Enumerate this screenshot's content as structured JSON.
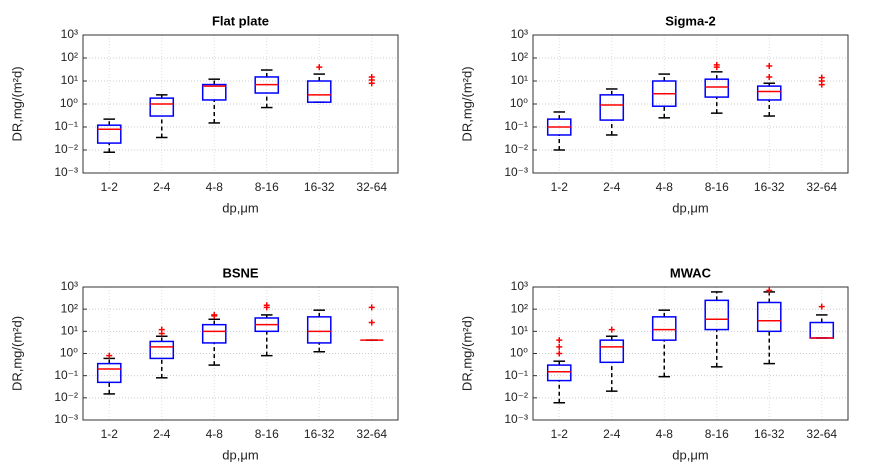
{
  "chart_data": [
    {
      "type": "box",
      "title": "Flat plate",
      "xlabel": "dp,μm",
      "ylabel": "DR,mg/(m²d)",
      "log": true,
      "grid": true,
      "box_color": "#0000ff",
      "median_color": "#ff0000",
      "whisker_color": "#000000",
      "outlier_color": "#ff0000",
      "ylim": [
        0.001,
        1000
      ],
      "yticks": [
        {
          "value": 0.001,
          "label": "10⁻³"
        },
        {
          "value": 0.01,
          "label": "10⁻²"
        },
        {
          "value": 0.1,
          "label": "10⁻¹"
        },
        {
          "value": 1,
          "label": "10⁰"
        },
        {
          "value": 10,
          "label": "10¹"
        },
        {
          "value": 100,
          "label": "10²"
        },
        {
          "value": 1000,
          "label": "10³"
        }
      ],
      "categories": [
        "1-2",
        "2-4",
        "4-8",
        "8-16",
        "16-32",
        "32-64"
      ],
      "boxes": [
        {
          "low": 0.008,
          "q1": 0.02,
          "median": 0.08,
          "q3": 0.12,
          "high": 0.22,
          "outliers": []
        },
        {
          "low": 0.035,
          "q1": 0.3,
          "median": 1.0,
          "q3": 1.8,
          "high": 2.5,
          "outliers": []
        },
        {
          "low": 0.15,
          "q1": 1.5,
          "median": 6,
          "q3": 7,
          "high": 12,
          "outliers": []
        },
        {
          "low": 0.7,
          "q1": 3,
          "median": 7,
          "q3": 15,
          "high": 30,
          "outliers": []
        },
        {
          "low": 1.2,
          "q1": 1.2,
          "median": 2.5,
          "q3": 10,
          "high": 20,
          "outliers": [
            40
          ]
        },
        {
          "low": null,
          "q1": null,
          "median": null,
          "q3": null,
          "high": null,
          "outliers": [
            15,
            11,
            8
          ]
        }
      ]
    },
    {
      "type": "box",
      "title": "Sigma-2",
      "xlabel": "dp,μm",
      "ylabel": "DR,mg/(m²d)",
      "log": true,
      "grid": true,
      "box_color": "#0000ff",
      "median_color": "#ff0000",
      "whisker_color": "#000000",
      "outlier_color": "#ff0000",
      "ylim": [
        0.001,
        1000
      ],
      "yticks": [
        {
          "value": 0.001,
          "label": "10⁻³"
        },
        {
          "value": 0.01,
          "label": "10⁻²"
        },
        {
          "value": 0.1,
          "label": "10⁻¹"
        },
        {
          "value": 1,
          "label": "10⁰"
        },
        {
          "value": 10,
          "label": "10¹"
        },
        {
          "value": 100,
          "label": "10²"
        },
        {
          "value": 1000,
          "label": "10³"
        }
      ],
      "categories": [
        "1-2",
        "2-4",
        "4-8",
        "8-16",
        "16-32",
        "32-64"
      ],
      "boxes": [
        {
          "low": 0.01,
          "q1": 0.045,
          "median": 0.1,
          "q3": 0.22,
          "high": 0.45,
          "outliers": []
        },
        {
          "low": 0.045,
          "q1": 0.2,
          "median": 0.9,
          "q3": 2.5,
          "high": 4.5,
          "outliers": []
        },
        {
          "low": 0.25,
          "q1": 0.8,
          "median": 2.8,
          "q3": 10,
          "high": 20,
          "outliers": []
        },
        {
          "low": 0.4,
          "q1": 2,
          "median": 5.5,
          "q3": 12,
          "high": 25,
          "outliers": [
            40,
            50
          ]
        },
        {
          "low": 0.3,
          "q1": 1.5,
          "median": 3.5,
          "q3": 6,
          "high": 8,
          "outliers": [
            15,
            45
          ]
        },
        {
          "low": null,
          "q1": null,
          "median": null,
          "q3": null,
          "high": null,
          "outliers": [
            14,
            10,
            7
          ]
        }
      ]
    },
    {
      "type": "box",
      "title": "BSNE",
      "xlabel": "dp,μm",
      "ylabel": "DR,mg/(m²d)",
      "log": true,
      "grid": true,
      "box_color": "#0000ff",
      "median_color": "#ff0000",
      "whisker_color": "#000000",
      "outlier_color": "#ff0000",
      "ylim": [
        0.001,
        1000
      ],
      "yticks": [
        {
          "value": 0.001,
          "label": "10⁻³"
        },
        {
          "value": 0.01,
          "label": "10⁻²"
        },
        {
          "value": 0.1,
          "label": "10⁻¹"
        },
        {
          "value": 1,
          "label": "10⁰"
        },
        {
          "value": 10,
          "label": "10¹"
        },
        {
          "value": 100,
          "label": "10²"
        },
        {
          "value": 1000,
          "label": "10³"
        }
      ],
      "categories": [
        "1-2",
        "2-4",
        "4-8",
        "8-16",
        "16-32",
        "32-64"
      ],
      "boxes": [
        {
          "low": 0.015,
          "q1": 0.05,
          "median": 0.2,
          "q3": 0.35,
          "high": 0.6,
          "outliers": [
            0.8
          ]
        },
        {
          "low": 0.08,
          "q1": 0.6,
          "median": 2,
          "q3": 3.5,
          "high": 6,
          "outliers": [
            8,
            12
          ]
        },
        {
          "low": 0.3,
          "q1": 3,
          "median": 10,
          "q3": 20,
          "high": 35,
          "outliers": [
            50,
            55
          ]
        },
        {
          "low": 0.8,
          "q1": 10,
          "median": 20,
          "q3": 40,
          "high": 55,
          "outliers": [
            120,
            150
          ]
        },
        {
          "low": 1.2,
          "q1": 3,
          "median": 10,
          "q3": 45,
          "high": 90,
          "outliers": []
        },
        {
          "low": 4,
          "q1": 4,
          "median": 4,
          "q3": 4,
          "high": 4,
          "outliers": [
            25,
            120
          ]
        }
      ]
    },
    {
      "type": "box",
      "title": "MWAC",
      "xlabel": "dp,μm",
      "ylabel": "DR,mg/(m²d)",
      "log": true,
      "grid": true,
      "box_color": "#0000ff",
      "median_color": "#ff0000",
      "whisker_color": "#000000",
      "outlier_color": "#ff0000",
      "ylim": [
        0.001,
        1000
      ],
      "yticks": [
        {
          "value": 0.001,
          "label": "10⁻³"
        },
        {
          "value": 0.01,
          "label": "10⁻²"
        },
        {
          "value": 0.1,
          "label": "10⁻¹"
        },
        {
          "value": 1,
          "label": "10⁰"
        },
        {
          "value": 10,
          "label": "10¹"
        },
        {
          "value": 100,
          "label": "10²"
        },
        {
          "value": 1000,
          "label": "10³"
        }
      ],
      "categories": [
        "1-2",
        "2-4",
        "4-8",
        "8-16",
        "16-32",
        "32-64"
      ],
      "boxes": [
        {
          "low": 0.006,
          "q1": 0.06,
          "median": 0.15,
          "q3": 0.3,
          "high": 0.45,
          "outliers": [
            1,
            2,
            4
          ]
        },
        {
          "low": 0.02,
          "q1": 0.4,
          "median": 2,
          "q3": 4,
          "high": 6,
          "outliers": [
            12
          ]
        },
        {
          "low": 0.09,
          "q1": 4,
          "median": 12,
          "q3": 45,
          "high": 90,
          "outliers": []
        },
        {
          "low": 0.25,
          "q1": 12,
          "median": 35,
          "q3": 250,
          "high": 600,
          "outliers": []
        },
        {
          "low": 0.35,
          "q1": 10,
          "median": 30,
          "q3": 200,
          "high": 600,
          "outliers": [
            700
          ]
        },
        {
          "low": 5,
          "q1": 5,
          "median": 5,
          "q3": 25,
          "high": 55,
          "outliers": [
            130
          ]
        }
      ]
    }
  ]
}
